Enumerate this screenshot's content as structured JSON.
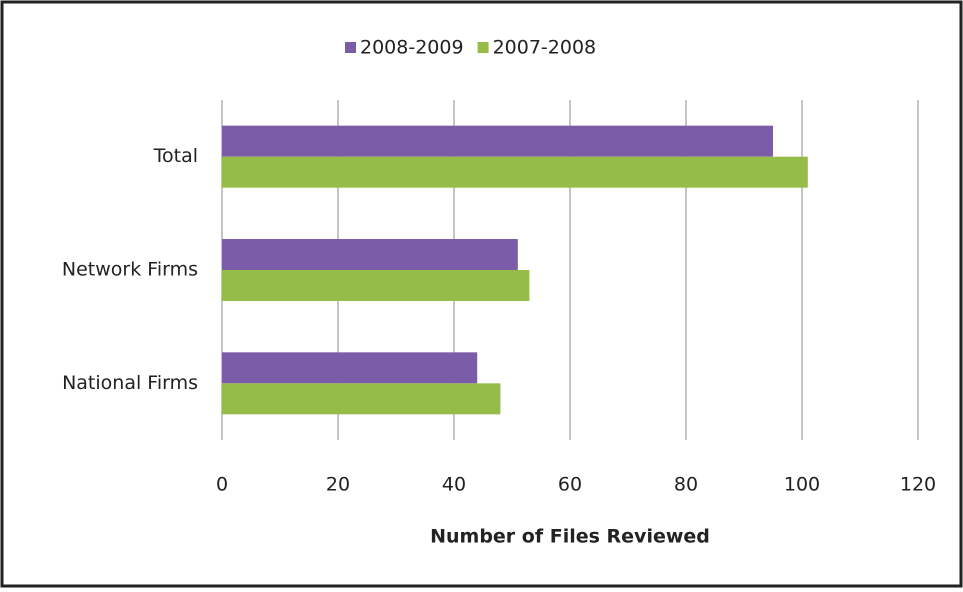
{
  "chart_data": {
    "type": "bar",
    "orientation": "horizontal",
    "x_label": "Number of Files Reviewed",
    "categories": [
      "Total",
      "Network Firms",
      "National Firms"
    ],
    "series": [
      {
        "name": "2008-2009",
        "color": "#7b5ca8",
        "values": [
          95,
          51,
          44
        ]
      },
      {
        "name": "2007-2008",
        "color": "#95bc49",
        "values": [
          101,
          53,
          48
        ]
      }
    ],
    "xlim": [
      0,
      120
    ],
    "xticks": [
      0,
      20,
      40,
      60,
      80,
      100,
      120
    ],
    "grid": true,
    "legend": "top"
  }
}
